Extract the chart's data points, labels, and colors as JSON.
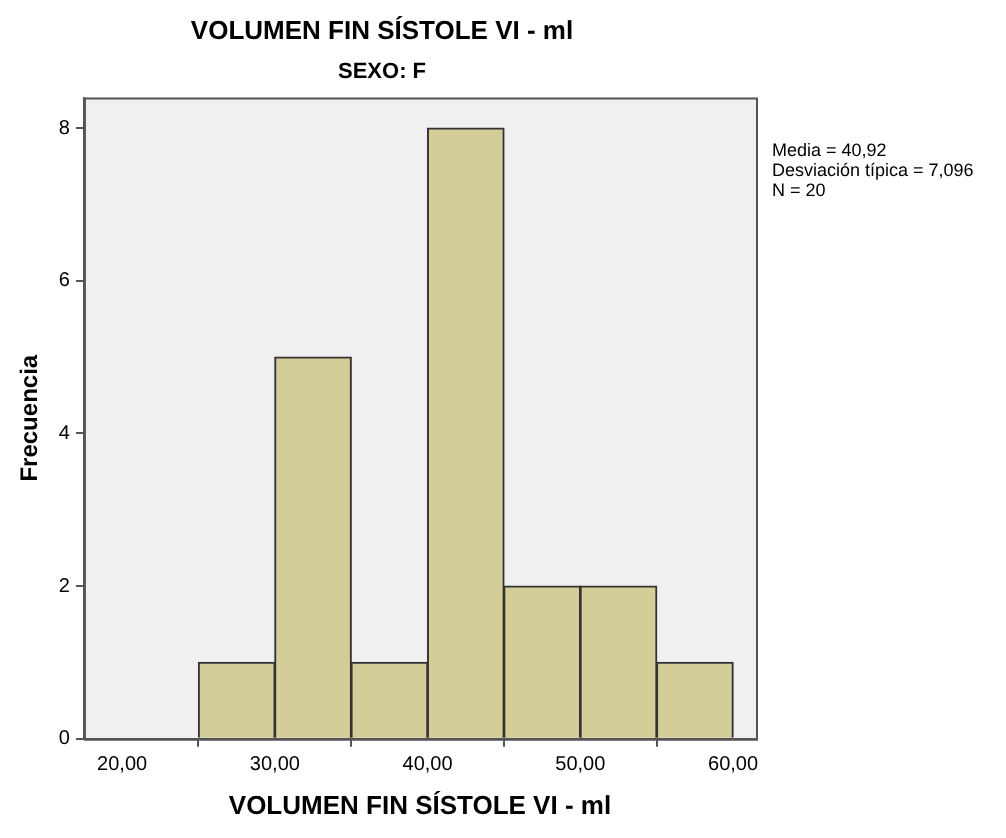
{
  "chart_data": {
    "type": "histogram",
    "title": "VOLUMEN FIN SÍSTOLE VI - ml",
    "subtitle": "SEXO: F",
    "xlabel": "VOLUMEN FIN SÍSTOLE VI - ml",
    "ylabel": "Frecuencia",
    "bins": [
      25,
      30,
      35,
      40,
      45,
      50,
      55,
      60
    ],
    "values": [
      1,
      5,
      1,
      8,
      2,
      2,
      1
    ],
    "color": "#d3ce97",
    "xlim": [
      17.5,
      61.5
    ],
    "xticks": [
      {
        "value": 20,
        "label": "20,00"
      },
      {
        "value": 30,
        "label": "30,00"
      },
      {
        "value": 40,
        "label": "40,00"
      },
      {
        "value": 50,
        "label": "50,00"
      },
      {
        "value": 60,
        "label": "60,00"
      }
    ],
    "ylim": [
      0,
      8.4
    ],
    "yticks": [
      0,
      2,
      4,
      6,
      8
    ],
    "grid": false,
    "legend": false,
    "annotations": [
      "Media = 40,92",
      "Desviación típica = 7,096",
      "N = 20"
    ]
  }
}
